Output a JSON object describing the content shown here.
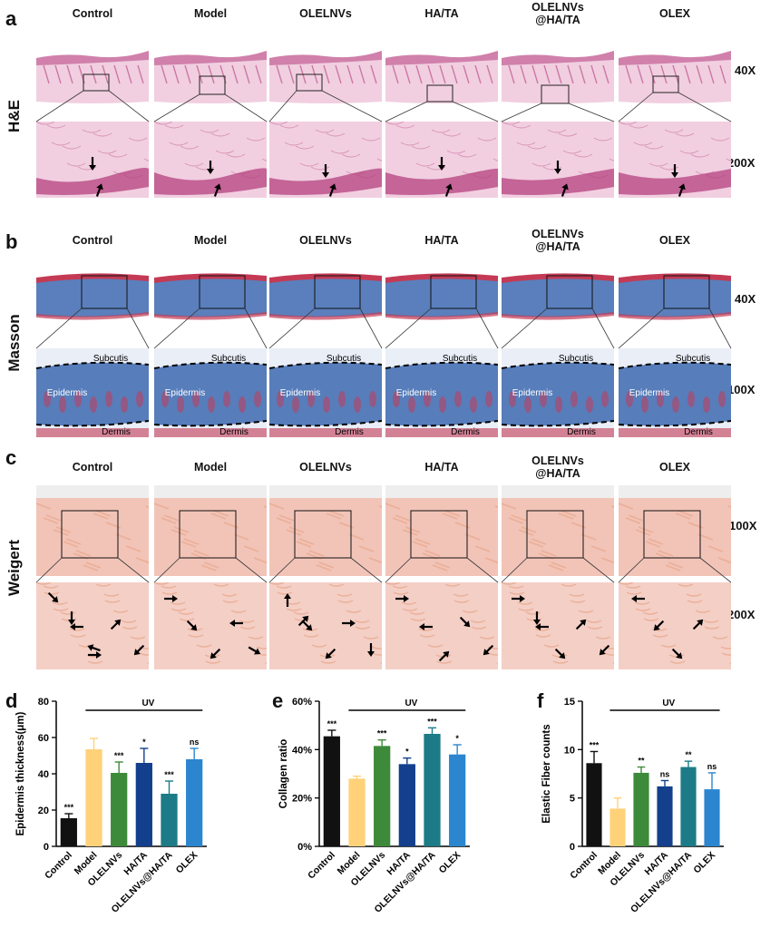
{
  "panels": {
    "a": {
      "letter": "a",
      "stain": "H&E",
      "mags": [
        "40X",
        "200X"
      ]
    },
    "b": {
      "letter": "b",
      "stain": "Masson",
      "mags": [
        "40X",
        "100X"
      ],
      "region_labels": {
        "subcutis": "Subcutis",
        "epidermis": "Epidermis",
        "dermis": "Dermis"
      }
    },
    "c": {
      "letter": "c",
      "stain": "Weigert",
      "mags": [
        "100X",
        "200X"
      ]
    }
  },
  "groups": [
    "Control",
    "Model",
    "OLELNVs",
    "HA/TA",
    "OLELNVs\n@HA/TA",
    "OLEX"
  ],
  "group_lines": [
    [
      "Control"
    ],
    [
      "Model"
    ],
    [
      "OLELNVs"
    ],
    [
      "HA/TA"
    ],
    [
      "OLELNVs",
      "@HA/TA"
    ],
    [
      "OLEX"
    ]
  ],
  "colors": {
    "he_bg": "#f1cfe0",
    "he_dark": "#b4407f",
    "masson_blue": "#3d69b0",
    "masson_red": "#c43a55",
    "weigert_bg": "#f2c4b8",
    "weigert_tissue": "#e9a98f",
    "bar_colors": [
      "#111111",
      "#ffd27a",
      "#3d8a3a",
      "#133f8c",
      "#1c7b86",
      "#2b86cf"
    ]
  },
  "chart_data": [
    {
      "letter": "d",
      "type": "bar",
      "categories": [
        "Control",
        "Model",
        "OLELNVs",
        "HA/TA",
        "OLELNVs@HA/TA",
        "OLEX"
      ],
      "values": [
        15.5,
        53.5,
        40.5,
        46,
        29,
        48
      ],
      "errors": [
        2.5,
        6,
        6,
        8,
        7,
        6
      ],
      "significance": [
        "***",
        "",
        "***",
        "*",
        "***",
        "ns"
      ],
      "ylabel": "Epidermis thickness(μm)",
      "ylim": [
        0,
        80
      ],
      "yticks": [
        "0",
        "20",
        "40",
        "60",
        "80"
      ],
      "bracket_label": "UV"
    },
    {
      "letter": "e",
      "type": "bar",
      "categories": [
        "Control",
        "Model",
        "OLELNVs",
        "HA/TA",
        "OLELNVs@HA/TA",
        "OLEX"
      ],
      "values": [
        45.5,
        28,
        41.5,
        34,
        46.5,
        38
      ],
      "errors": [
        2.5,
        1,
        2.5,
        2.5,
        2.5,
        4
      ],
      "significance": [
        "***",
        "",
        "***",
        "*",
        "***",
        "*"
      ],
      "ylabel": "Collagen ratio",
      "ylim": [
        0,
        60
      ],
      "yticks": [
        "0%",
        "20%",
        "40%",
        "60%"
      ],
      "bracket_label": "UV"
    },
    {
      "letter": "f",
      "type": "bar",
      "categories": [
        "Control",
        "Model",
        "OLELNVs",
        "HA/TA",
        "OLELNVs@HA/TA",
        "OLEX"
      ],
      "values": [
        8.6,
        3.9,
        7.6,
        6.2,
        8.2,
        5.9
      ],
      "errors": [
        1.2,
        1.1,
        0.6,
        0.6,
        0.6,
        1.7
      ],
      "significance": [
        "***",
        "",
        "**",
        "ns",
        "**",
        "ns"
      ],
      "ylabel": "Elastic Fiber counts",
      "ylim": [
        0,
        15
      ],
      "yticks": [
        "0",
        "5",
        "10",
        "15"
      ],
      "bracket_label": "UV"
    }
  ]
}
